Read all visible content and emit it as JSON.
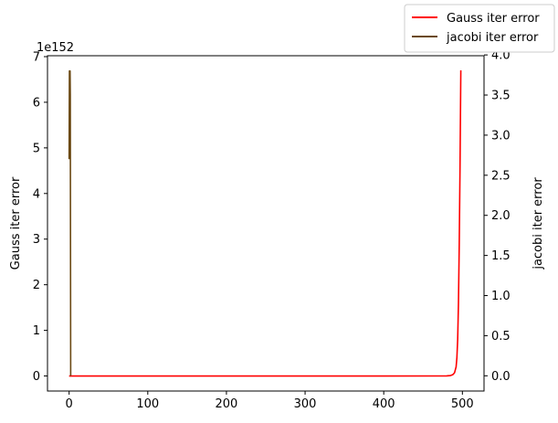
{
  "chart_data": {
    "type": "line",
    "title": "",
    "xlabel": "",
    "x_ticks": [
      0,
      100,
      200,
      300,
      400,
      500
    ],
    "xlim": [
      -27.5,
      527.5
    ],
    "left_axis": {
      "label": "Gauss iter error",
      "offset_text": "1e152",
      "ticks": [
        0,
        1,
        2,
        3,
        4,
        5,
        6,
        7
      ],
      "ylim": [
        -0.33,
        7.02
      ]
    },
    "right_axis": {
      "label": "jacobi iter error",
      "ticks": [
        0.0,
        0.5,
        1.0,
        1.5,
        2.0,
        2.5,
        3.0,
        3.5,
        4.0
      ],
      "tick_labels": [
        "0.0",
        "0.5",
        "1.0",
        "1.5",
        "2.0",
        "2.5",
        "3.0",
        "3.5",
        "4.0"
      ],
      "ylim": [
        -0.19,
        3.99
      ]
    },
    "legend": {
      "position": "top-right",
      "entries": [
        "Gauss iter error",
        "jacobi iter error"
      ]
    },
    "series": [
      {
        "name": "Gauss iter error",
        "axis": "left",
        "color": "#ff0000",
        "x": [
          0,
          100,
          200,
          300,
          400,
          480,
          485,
          488,
          490,
          492,
          493,
          494,
          495,
          496,
          497,
          498
        ],
        "y": [
          0,
          0,
          0,
          0,
          0,
          0.002,
          0.01,
          0.03,
          0.07,
          0.2,
          0.4,
          0.8,
          1.6,
          2.9,
          4.6,
          6.7
        ]
      },
      {
        "name": "jacobi iter error",
        "axis": "right",
        "color": "#6b4914",
        "x": [
          0,
          0.4,
          0.8,
          1,
          1.2,
          1.5,
          2
        ],
        "y": [
          2.7,
          3.8,
          3.8,
          3.6,
          3.8,
          3.5,
          0.0
        ]
      }
    ]
  }
}
